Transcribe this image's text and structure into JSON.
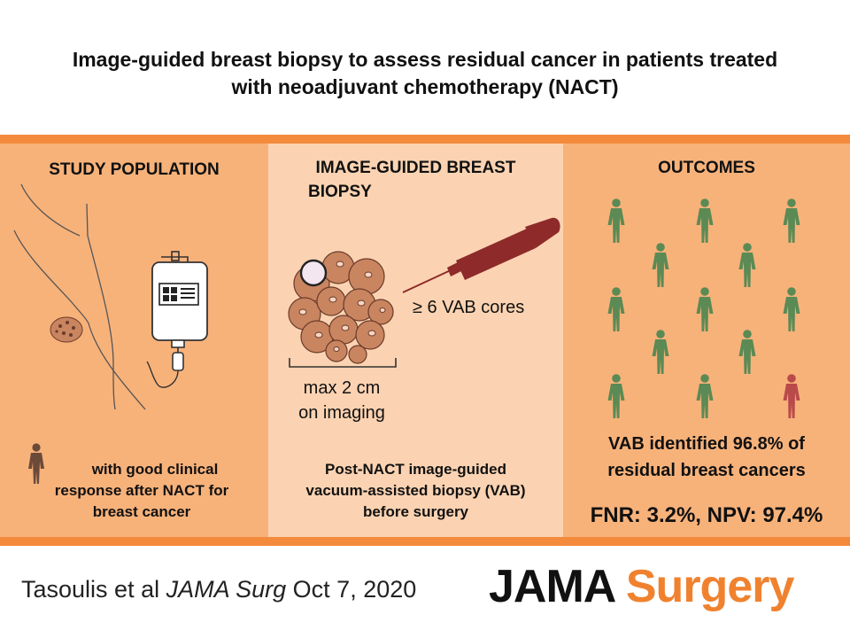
{
  "title": {
    "line1": "Image-guided breast biopsy to assess residual cancer in patients treated",
    "line2": "with neoadjuvant chemotherapy (NACT)"
  },
  "left": {
    "heading": "STUDY POPULATION",
    "caption_line1": "with good clinical",
    "caption_line2": "response after NACT for",
    "caption_line3": "breast cancer"
  },
  "middle": {
    "heading_line1": "IMAGE-GUIDED BREAST",
    "heading_line2": "BIOPSY",
    "cores_label": "≥ 6 VAB cores",
    "size_line1": "max 2 cm",
    "size_line2": "on imaging",
    "caption_line1": "Post-NACT image-guided",
    "caption_line2": "vacuum-assisted biopsy (VAB)",
    "caption_line3": "before surgery"
  },
  "right": {
    "heading": "OUTCOMES",
    "result_prefix": "VAB identified",
    "result_value": "96.8%",
    "result_suffix": "of",
    "result_line2": "residual breast cancers",
    "stats": "FNR: 3.2%, NPV: 97.4%"
  },
  "footer": {
    "authors": "Tasoulis et al",
    "journal": "JAMA Surg",
    "date": "Oct 7, 2020",
    "logo_part1": "JAMA",
    "logo_part2": "Surgery"
  },
  "colors": {
    "band": "#f7b27a",
    "band_border": "#f38a3c",
    "middle_panel": "#fbd3b2",
    "person_green": "#5b8a55",
    "person_red": "#b94a4a",
    "person_brown": "#6b4a3a",
    "needle": "#8e2a2a",
    "cell": "#c98560"
  },
  "icons": {
    "patient_figure": "patient-breast-outline-icon",
    "iv_bag": "iv-bag-icon",
    "tumor_cells": "tumor-cluster-icon",
    "biopsy_needle": "biopsy-needle-icon",
    "person": "person-icon"
  }
}
